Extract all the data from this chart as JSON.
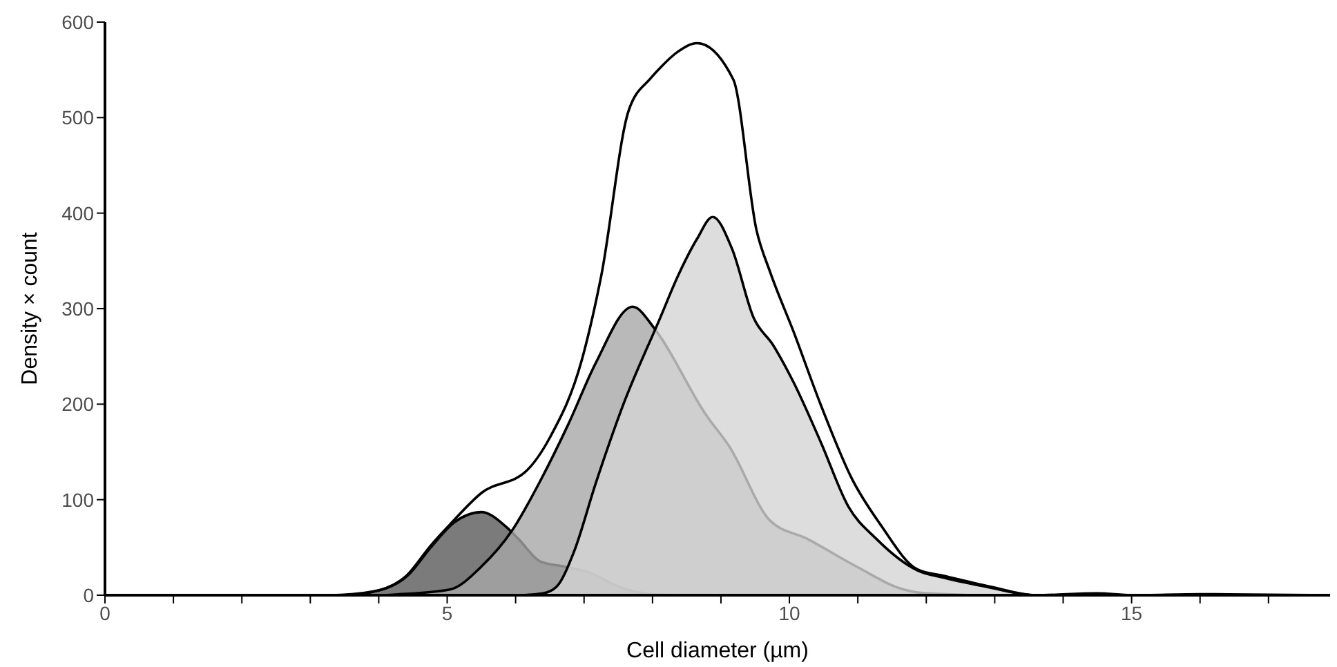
{
  "chart_data": {
    "type": "area",
    "xlabel": "Cell diameter (µm)",
    "ylabel": "Density × count",
    "xlim": [
      0,
      17.9
    ],
    "ylim": [
      0,
      600
    ],
    "xticks": [
      0,
      {
        "value": 1,
        "label": null
      },
      {
        "value": 2,
        "label": null
      },
      {
        "value": 3,
        "label": null
      },
      {
        "value": 4,
        "label": null
      },
      5,
      {
        "value": 6,
        "label": null
      },
      {
        "value": 7,
        "label": null
      },
      {
        "value": 8,
        "label": null
      },
      {
        "value": 9,
        "label": null
      },
      10,
      {
        "value": 11,
        "label": null
      },
      {
        "value": 12,
        "label": null
      },
      {
        "value": 13,
        "label": null
      },
      {
        "value": 14,
        "label": null
      },
      15,
      {
        "value": 16,
        "label": null
      },
      {
        "value": 17,
        "label": null
      }
    ],
    "yticks": [
      0,
      100,
      200,
      300,
      400,
      500,
      600
    ],
    "series": [
      {
        "type": "line",
        "color": "#000000",
        "x": [
          0,
          3.5,
          4,
          4.4,
          4.76,
          5.04,
          5.5,
          6.17,
          6.5,
          6.97,
          7.25,
          7.65,
          7.97,
          8.11,
          8.37,
          8.65,
          9.18,
          9.52,
          9.72,
          10.06,
          10.46,
          10.92,
          11.33,
          11.87,
          12.27,
          12.93,
          13.6,
          14.5,
          15,
          16,
          17.9
        ],
        "values": [
          0,
          0,
          5,
          20,
          52,
          74,
          107,
          131,
          165,
          247,
          334,
          507,
          541,
          552,
          569,
          578,
          540,
          382,
          338,
          276,
          199,
          121,
          74,
          27,
          20,
          9,
          0,
          2,
          0,
          1,
          0
        ]
      },
      {
        "color": "#5a5a5a",
        "x": [
          0,
          3.3,
          3.6,
          4.1,
          4.43,
          4.76,
          5.1,
          5.5,
          5.84,
          6.04,
          6.37,
          6.71,
          7.1,
          7.5,
          8,
          8.5,
          17.9
        ],
        "values": [
          0,
          0,
          1,
          7,
          21,
          50,
          76,
          87,
          73,
          59,
          35,
          30,
          23,
          9,
          1,
          0,
          0
        ]
      },
      {
        "color": "#a8a8a8",
        "x": [
          0,
          4,
          4.3,
          5.04,
          5.5,
          5.96,
          6.37,
          6.77,
          7.17,
          7.71,
          8.01,
          8.11,
          8.78,
          9.12,
          9.72,
          10.26,
          10.98,
          11.67,
          12,
          13,
          17.9
        ],
        "values": [
          0,
          0,
          1,
          6,
          30,
          69,
          121,
          179,
          243,
          302,
          281,
          271,
          189,
          156,
          78,
          59,
          30,
          6,
          2,
          0,
          0
        ]
      },
      {
        "color": "#d4d4d4",
        "x": [
          0,
          6,
          6.4,
          6.6,
          6.85,
          7.17,
          7.57,
          8.11,
          8.37,
          8.65,
          8.88,
          9.16,
          9.48,
          9.76,
          10.06,
          10.46,
          10.86,
          11.27,
          11.87,
          12.27,
          12.93,
          13.6,
          17.9
        ],
        "values": [
          0,
          0,
          2,
          9,
          45,
          117,
          199,
          290,
          334,
          373,
          396,
          363,
          290,
          262,
          223,
          160,
          93,
          59,
          26,
          18,
          8,
          0,
          0
        ]
      }
    ]
  }
}
